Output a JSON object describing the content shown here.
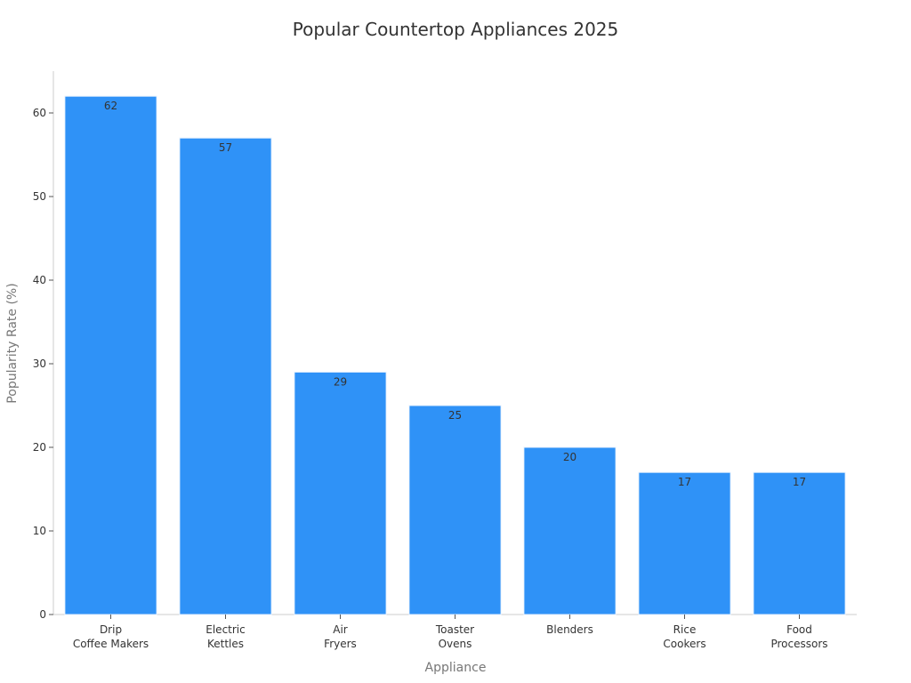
{
  "chart_data": {
    "type": "bar",
    "title": "Popular Countertop Appliances 2025",
    "xlabel": "Appliance",
    "ylabel": "Popularity Rate (%)",
    "categories": [
      [
        "Drip",
        "Coffee Makers"
      ],
      [
        "Electric",
        "Kettles"
      ],
      [
        "Air",
        "Fryers"
      ],
      [
        "Toaster",
        "Ovens"
      ],
      [
        "Blenders"
      ],
      [
        "Rice",
        "Cookers"
      ],
      [
        "Food",
        "Processors"
      ]
    ],
    "values": [
      62,
      57,
      29,
      25,
      20,
      17,
      17
    ],
    "ylim": [
      0,
      65
    ],
    "yticks": [
      0,
      10,
      20,
      30,
      40,
      50,
      60
    ],
    "bar_color": "#2f92f7",
    "grid": false,
    "legend": "none"
  }
}
